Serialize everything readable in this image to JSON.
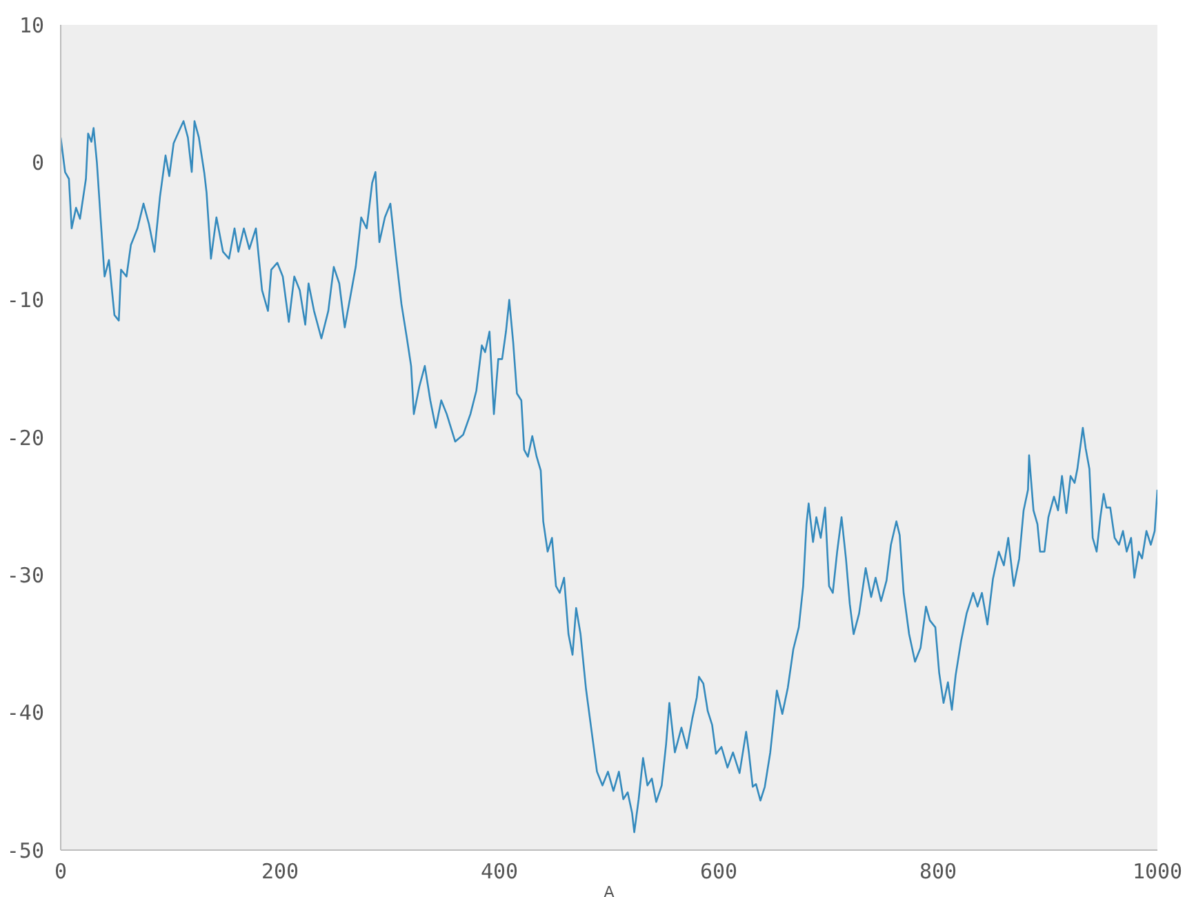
{
  "chart_data": {
    "type": "line",
    "xlabel": "A",
    "x": [
      0,
      4,
      7.5,
      10,
      14,
      17.6,
      23,
      25,
      28,
      30,
      33,
      36.5,
      40,
      44,
      49,
      53,
      55,
      60,
      64,
      70,
      75.5,
      80.5,
      85.5,
      90.5,
      95.6,
      99,
      103,
      108,
      112,
      116,
      119.5,
      122,
      126,
      131,
      133,
      137,
      142,
      148,
      153.5,
      158.5,
      162,
      167,
      172,
      178,
      183.6,
      189,
      192,
      197.5,
      202.5,
      208,
      213,
      218,
      223,
      226,
      231,
      237.7,
      244,
      249,
      254,
      259,
      264,
      269,
      274,
      279,
      284,
      287,
      290.6,
      295.6,
      300.6,
      305.7,
      310.7,
      315.7,
      319.5,
      322,
      327,
      332,
      337,
      342,
      347,
      352,
      359.7,
      367,
      373.6,
      379,
      384,
      387,
      391,
      395,
      399,
      402.5,
      406,
      409,
      412.6,
      416,
      420,
      422.6,
      426,
      430,
      434,
      437.7,
      440,
      444,
      448,
      451.6,
      455,
      459,
      463,
      466.7,
      470,
      474,
      479,
      484,
      489,
      494,
      499,
      504,
      509,
      513,
      517,
      521,
      523,
      527,
      531,
      535,
      539,
      543,
      548,
      552,
      555,
      560,
      566,
      571,
      576,
      580,
      582,
      586,
      590,
      594,
      597.5,
      602.5,
      608,
      613,
      619,
      625,
      627.5,
      631,
      634,
      638,
      642,
      647,
      653,
      658,
      663,
      668,
      673,
      677,
      680,
      682,
      686,
      689,
      693,
      697,
      700.6,
      704,
      708,
      712,
      716,
      719.5,
      723,
      728,
      734,
      739,
      743,
      748,
      753,
      757,
      762,
      765,
      768.6,
      773.6,
      779,
      784,
      789,
      792.5,
      797.5,
      801,
      805,
      809,
      812.6,
      816,
      821,
      826,
      832,
      836,
      840,
      845,
      850,
      855.3,
      860,
      864,
      869,
      874,
      878,
      882,
      883,
      887,
      890.6,
      893,
      897,
      900.6,
      905.7,
      909.4,
      913,
      917,
      920.8,
      924.5,
      927,
      932,
      934.6,
      938,
      941,
      944.6,
      948,
      951,
      953.5,
      957,
      961,
      965,
      968.6,
      972,
      976,
      979,
      983,
      986,
      990,
      994,
      997.5,
      1000
    ],
    "values": [
      1.8,
      -0.7,
      -1.2,
      -4.8,
      -3.3,
      -4.1,
      -1.2,
      2.1,
      1.5,
      2.5,
      0,
      -4.2,
      -8.3,
      -7.1,
      -11.1,
      -11.5,
      -7.8,
      -8.3,
      -6,
      -4.8,
      -3,
      -4.5,
      -6.5,
      -2.5,
      0.5,
      -1,
      1.4,
      2.3,
      3,
      1.8,
      -0.7,
      3,
      1.8,
      -0.8,
      -2.2,
      -7,
      -4,
      -6.5,
      -7,
      -4.8,
      -6.5,
      -4.8,
      -6.3,
      -4.8,
      -9.3,
      -10.8,
      -7.8,
      -7.3,
      -8.3,
      -11.6,
      -8.3,
      -9.3,
      -11.8,
      -8.8,
      -10.8,
      -12.8,
      -10.8,
      -7.6,
      -8.8,
      -12,
      -9.8,
      -7.6,
      -4,
      -4.8,
      -1.5,
      -0.7,
      -5.8,
      -4,
      -3,
      -6.8,
      -10.3,
      -12.8,
      -14.8,
      -18.3,
      -16.3,
      -14.8,
      -17.3,
      -19.3,
      -17.3,
      -18.3,
      -20.3,
      -19.8,
      -18.3,
      -16.6,
      -13.3,
      -13.8,
      -12.3,
      -18.3,
      -14.3,
      -14.3,
      -12.3,
      -10,
      -13.1,
      -16.8,
      -17.3,
      -20.9,
      -21.4,
      -19.9,
      -21.4,
      -22.4,
      -26.1,
      -28.3,
      -27.3,
      -30.8,
      -31.3,
      -30.2,
      -34.3,
      -35.8,
      -32.4,
      -34.3,
      -38.3,
      -41.3,
      -44.3,
      -45.3,
      -44.3,
      -45.7,
      -44.3,
      -46.3,
      -45.8,
      -47.3,
      -48.7,
      -46.3,
      -43.3,
      -45.3,
      -44.8,
      -46.5,
      -45.3,
      -42.3,
      -39.3,
      -42.9,
      -41.1,
      -42.6,
      -40.4,
      -38.9,
      -37.4,
      -37.9,
      -39.9,
      -40.9,
      -43,
      -42.5,
      -44,
      -42.9,
      -44.4,
      -41.4,
      -42.9,
      -45.4,
      -45.2,
      -46.4,
      -45.4,
      -42.9,
      -38.4,
      -40.1,
      -38.2,
      -35.4,
      -33.8,
      -30.8,
      -26.3,
      -24.8,
      -27.6,
      -25.8,
      -27.3,
      -25.1,
      -30.8,
      -31.3,
      -28.3,
      -25.8,
      -28.8,
      -32.1,
      -34.3,
      -32.8,
      -29.5,
      -31.6,
      -30.2,
      -31.9,
      -30.4,
      -27.8,
      -26.1,
      -27.1,
      -31.3,
      -34.3,
      -36.3,
      -35.3,
      -32.3,
      -33.3,
      -33.8,
      -37.1,
      -39.3,
      -37.8,
      -39.8,
      -37.3,
      -34.8,
      -32.8,
      -31.3,
      -32.3,
      -31.3,
      -33.6,
      -30.3,
      -28.3,
      -29.3,
      -27.3,
      -30.8,
      -28.8,
      -25.3,
      -23.8,
      -21.3,
      -25.3,
      -26.3,
      -28.3,
      -28.3,
      -25.8,
      -24.3,
      -25.3,
      -22.8,
      -25.5,
      -22.8,
      -23.3,
      -22.3,
      -19.3,
      -20.8,
      -22.3,
      -27.3,
      -28.3,
      -25.8,
      -24.1,
      -25.1,
      -25.1,
      -27.3,
      -27.8,
      -26.8,
      -28.3,
      -27.3,
      -30.2,
      -28.3,
      -28.8,
      -26.8,
      -27.8,
      -26.8,
      -23.8
    ],
    "color": "#348abd",
    "xlim": [
      0,
      1000
    ],
    "xticks": [
      0,
      200,
      400,
      600,
      800,
      1000
    ],
    "ylim": [
      -50,
      10
    ],
    "yticks": [
      -50,
      -40,
      -30,
      -20,
      -10,
      0,
      10
    ],
    "marker": "none",
    "line_style": "solid"
  }
}
